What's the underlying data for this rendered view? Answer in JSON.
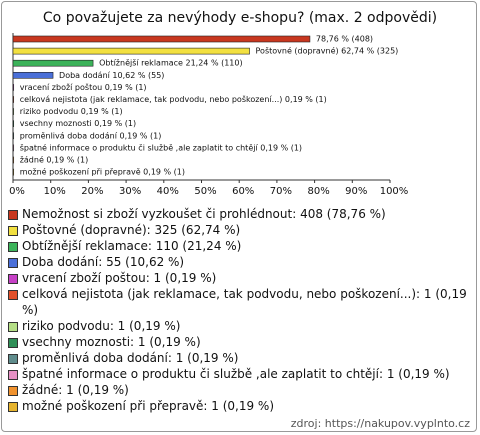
{
  "chart_data": {
    "type": "hbar",
    "title": "Co považujete za nevýhody e-shopu? (max. 2 odpovědi)",
    "categories": [
      "Nemožnost si zboží vyzkoušet či prohlédnout: 408 (78,76 %)",
      "Poštovné (dopravné): 325 (62,74 %)",
      "Obtížnější reklamace: 110 (21,24 %)",
      "Doba dodání: 55 (10,62 %)",
      "vracení zboží poštou: 1 (0,19 %)",
      "celková nejistota (jak reklamace, tak podvodu, nebo poškození...): 1 (0,19 %)",
      "riziko podvodu: 1 (0,19 %)",
      "vsechny moznosti: 1 (0,19 %)",
      "proměnlivá doba dodání: 1 (0,19 %)",
      "špatné informace o produktu či službě ,ale zaplatit to chtějí: 1 (0,19 %)",
      "žádné: 1 (0,19 %)",
      "možné poškození při přepravě: 1 (0,19 %)"
    ],
    "values": [
      78.76,
      62.74,
      21.24,
      10.62,
      0.19,
      0.19,
      0.19,
      0.19,
      0.19,
      0.19,
      0.19,
      0.19
    ],
    "value_labels": [
      "78,76 % (408)",
      "Poštovné (dopravné) 62,74 % (325)",
      "Obtížnější reklamace 21,24 % (110)",
      "Doba dodání 10,62 % (55)",
      "vracení zboží poštou 0,19 % (1)",
      "celková nejistota (jak reklamace, tak podvodu, nebo poškození...) 0,19 % (1)",
      "riziko podvodu 0,19 % (1)",
      "vsechny moznosti 0,19 % (1)",
      "proměnlivá doba dodání 0,19 % (1)",
      "špatné informace o produktu či službě ,ale zaplatit to chtějí 0,19 % (1)",
      "žádné 0,19 % (1)",
      "možné poškození při přepravě 0,19 % (1)"
    ],
    "colors": [
      "#c8371f",
      "#f2e040",
      "#3cb35a",
      "#4a6fd8",
      "#c640c6",
      "#e2502a",
      "#b5df86",
      "#2f8f57",
      "#5f8c8c",
      "#e690c4",
      "#f0922e",
      "#e6b42e"
    ],
    "xlim": [
      0,
      100
    ],
    "xticks": [
      {
        "value": 0,
        "label": "0%"
      },
      {
        "value": 10,
        "label": "10%"
      },
      {
        "value": 20,
        "label": "20%"
      },
      {
        "value": 30,
        "label": "30%"
      },
      {
        "value": 40,
        "label": "40%"
      },
      {
        "value": 50,
        "label": "50%"
      },
      {
        "value": 60,
        "label": "60%"
      },
      {
        "value": 70,
        "label": "70%"
      },
      {
        "value": 80,
        "label": "80%"
      },
      {
        "value": 90,
        "label": "90%"
      },
      {
        "value": 100,
        "label": "100%"
      }
    ],
    "source": "zdroj: https://nakupov.vyplnto.cz"
  }
}
